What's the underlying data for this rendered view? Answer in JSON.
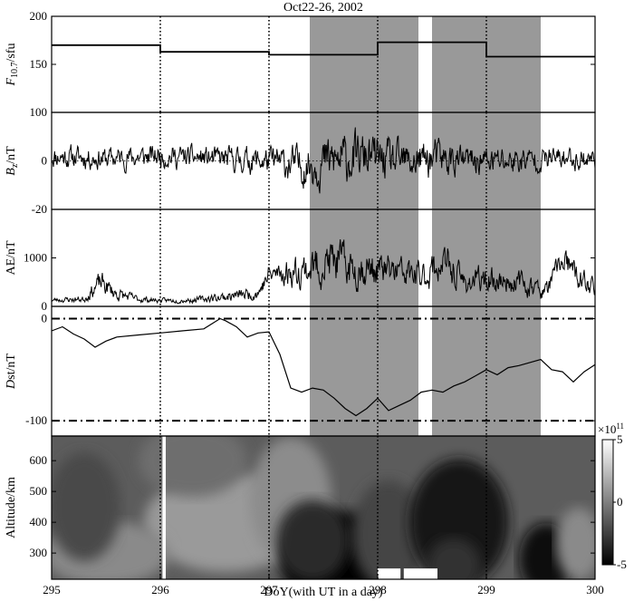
{
  "chart_data": {
    "type": "line",
    "title": "Oct22-26, 2002",
    "xlabel": "DoY(with UT in a day)",
    "xlim": [
      295,
      300
    ],
    "x_ticks": [
      "295",
      "296",
      "297",
      "298",
      "299",
      "300"
    ],
    "day_boundaries": [
      296,
      297,
      298,
      299
    ],
    "shaded_intervals": [
      [
        297.375,
        298.375
      ],
      [
        298.5,
        299.5
      ]
    ],
    "colors": {
      "line": "#000000",
      "shade": "#999999",
      "frame": "#000000"
    },
    "panels": [
      {
        "id": "f107",
        "ylabel": "F10.7/sfu",
        "ylabel_base": "F",
        "ylabel_sub": "10.7",
        "ylabel_rest": "/sfu",
        "ylim": [
          100,
          200
        ],
        "y_ticks": [
          "200",
          "150",
          "100"
        ],
        "y_tick_values": [
          200,
          150,
          100
        ],
        "series": [
          {
            "type": "step",
            "x": [
              295,
              296,
              297,
              298,
              299,
              300
            ],
            "y": [
              170,
              163,
              160,
              173,
              158
            ]
          }
        ]
      },
      {
        "id": "bz",
        "ylabel": "Bz/nT",
        "ylabel_base": "B",
        "ylabel_sub": "z",
        "ylabel_rest": "/nT",
        "ylim": [
          -20,
          20
        ],
        "y_ticks": [
          "0",
          "-20"
        ],
        "y_tick_values": [
          0,
          -20
        ],
        "zero_line": "dotted",
        "series": [
          {
            "type": "noisy",
            "seed": 11,
            "x": [
              295,
              295.5,
              296,
              296.5,
              297,
              297.3,
              297.6,
              297.9,
              298.2,
              298.5,
              298.8,
              299.2,
              299.6,
              300
            ],
            "y": [
              2,
              1,
              2,
              1,
              0,
              -2,
              0,
              2,
              -1,
              1,
              0,
              0,
              1,
              1
            ],
            "noise": [
              4,
              4,
              4,
              4,
              5,
              7,
              9,
              8,
              7,
              7,
              5,
              5,
              4,
              4
            ]
          }
        ]
      },
      {
        "id": "ae",
        "ylabel": "AE/nT",
        "ylim": [
          0,
          2000
        ],
        "y_ticks": [
          "1000",
          "0"
        ],
        "y_tick_values": [
          1000,
          0
        ],
        "series": [
          {
            "type": "noisy",
            "seed": 23,
            "x": [
              295,
              295.3,
              295.45,
              295.6,
              295.8,
              296,
              296.3,
              296.6,
              296.9,
              297,
              297.2,
              297.4,
              297.6,
              297.75,
              298,
              298.2,
              298.4,
              298.6,
              298.8,
              299,
              299.3,
              299.55,
              299.7,
              299.85,
              300
            ],
            "y": [
              130,
              150,
              500,
              250,
              150,
              120,
              130,
              200,
              280,
              650,
              700,
              800,
              950,
              800,
              750,
              700,
              600,
              900,
              500,
              550,
              500,
              300,
              1000,
              550,
              400
            ],
            "noise": [
              40,
              60,
              200,
              120,
              60,
              40,
              50,
              90,
              120,
              200,
              250,
              350,
              400,
              350,
              300,
              280,
              260,
              320,
              220,
              220,
              200,
              150,
              250,
              220,
              150
            ]
          }
        ]
      },
      {
        "id": "dst",
        "ylabel": "Dst/nT",
        "ylabel_base": "D",
        "ylabel_rest": "st/nT",
        "ylim": [
          -115,
          12
        ],
        "y_ticks": [
          "0",
          "-100"
        ],
        "y_tick_values": [
          0,
          -100
        ],
        "dashdot_levels": [
          0,
          -100
        ],
        "series": [
          {
            "type": "line",
            "x": [
              295,
              295.1,
              295.2,
              295.3,
              295.4,
              295.5,
              295.6,
              295.8,
              296,
              296.2,
              296.4,
              296.55,
              296.6,
              296.7,
              296.8,
              296.9,
              297,
              297.1,
              297.2,
              297.3,
              297.4,
              297.5,
              297.6,
              297.7,
              297.8,
              297.9,
              298,
              298.1,
              298.2,
              298.3,
              298.4,
              298.5,
              298.6,
              298.7,
              298.8,
              298.9,
              299,
              299.1,
              299.2,
              299.3,
              299.4,
              299.5,
              299.6,
              299.7,
              299.8,
              299.9,
              300
            ],
            "y": [
              -12,
              -8,
              -15,
              -20,
              -28,
              -22,
              -18,
              -16,
              -14,
              -12,
              -10,
              0,
              -2,
              -8,
              -18,
              -14,
              -13,
              -35,
              -68,
              -72,
              -68,
              -70,
              -78,
              -88,
              -95,
              -88,
              -78,
              -90,
              -85,
              -80,
              -72,
              -70,
              -72,
              -66,
              -62,
              -56,
              -50,
              -55,
              -48,
              -46,
              -43,
              -40,
              -50,
              -52,
              -62,
              -52,
              -45
            ]
          }
        ]
      },
      {
        "id": "density",
        "ylabel": "Altitude/km",
        "ylim": [
          215,
          680
        ],
        "y_ticks": [
          "600",
          "500",
          "400",
          "300"
        ],
        "y_tick_values": [
          600,
          500,
          400,
          300
        ],
        "colorbar": {
          "label": "×10^11",
          "label_base": "×10",
          "label_exp": "11",
          "range": [
            -5,
            5
          ],
          "ticks": [
            "5",
            "0",
            "-5"
          ],
          "tick_values": [
            5,
            0,
            -5
          ]
        },
        "gaps": [
          [
            296.02,
            296.05
          ]
        ],
        "white_blocks": [
          [
            298.0,
            298.21,
            215,
            250
          ],
          [
            298.24,
            298.55,
            215,
            250
          ]
        ]
      }
    ]
  }
}
